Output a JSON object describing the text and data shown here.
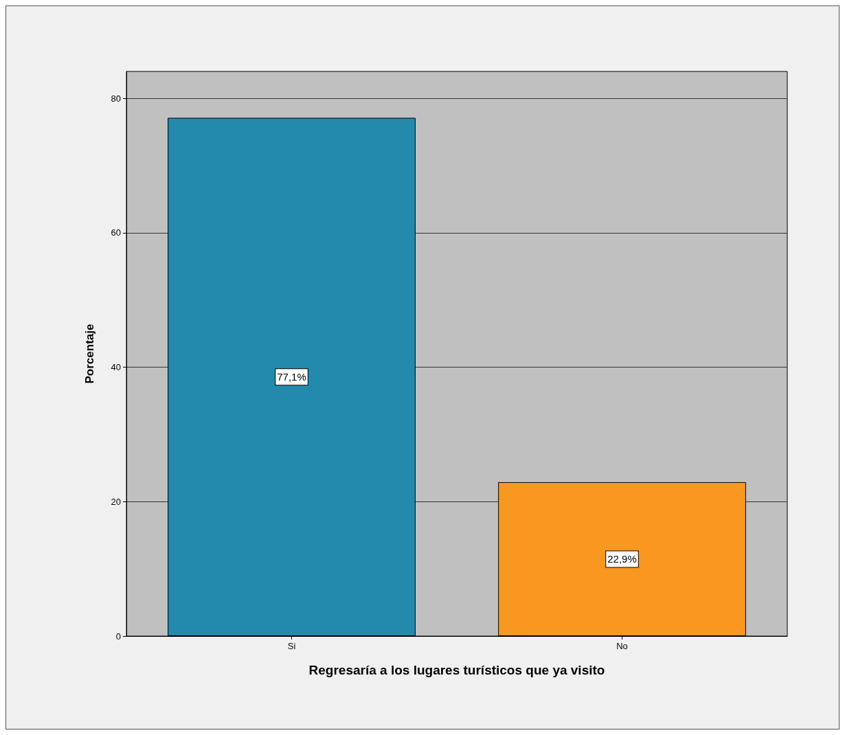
{
  "chart_data": {
    "type": "bar",
    "xlabel": "Regresaría a los lugares turísticos que ya visito",
    "ylabel": "Porcentaje",
    "categories": [
      "Si",
      "No"
    ],
    "values": [
      77.1,
      22.9
    ],
    "colors": [
      "#248aad",
      "#f89820"
    ],
    "value_labels": [
      "77,1%",
      "22,9%"
    ],
    "ylim": [
      0,
      84
    ],
    "yticks": [
      0,
      20,
      40,
      60,
      80
    ],
    "grid": "y"
  }
}
